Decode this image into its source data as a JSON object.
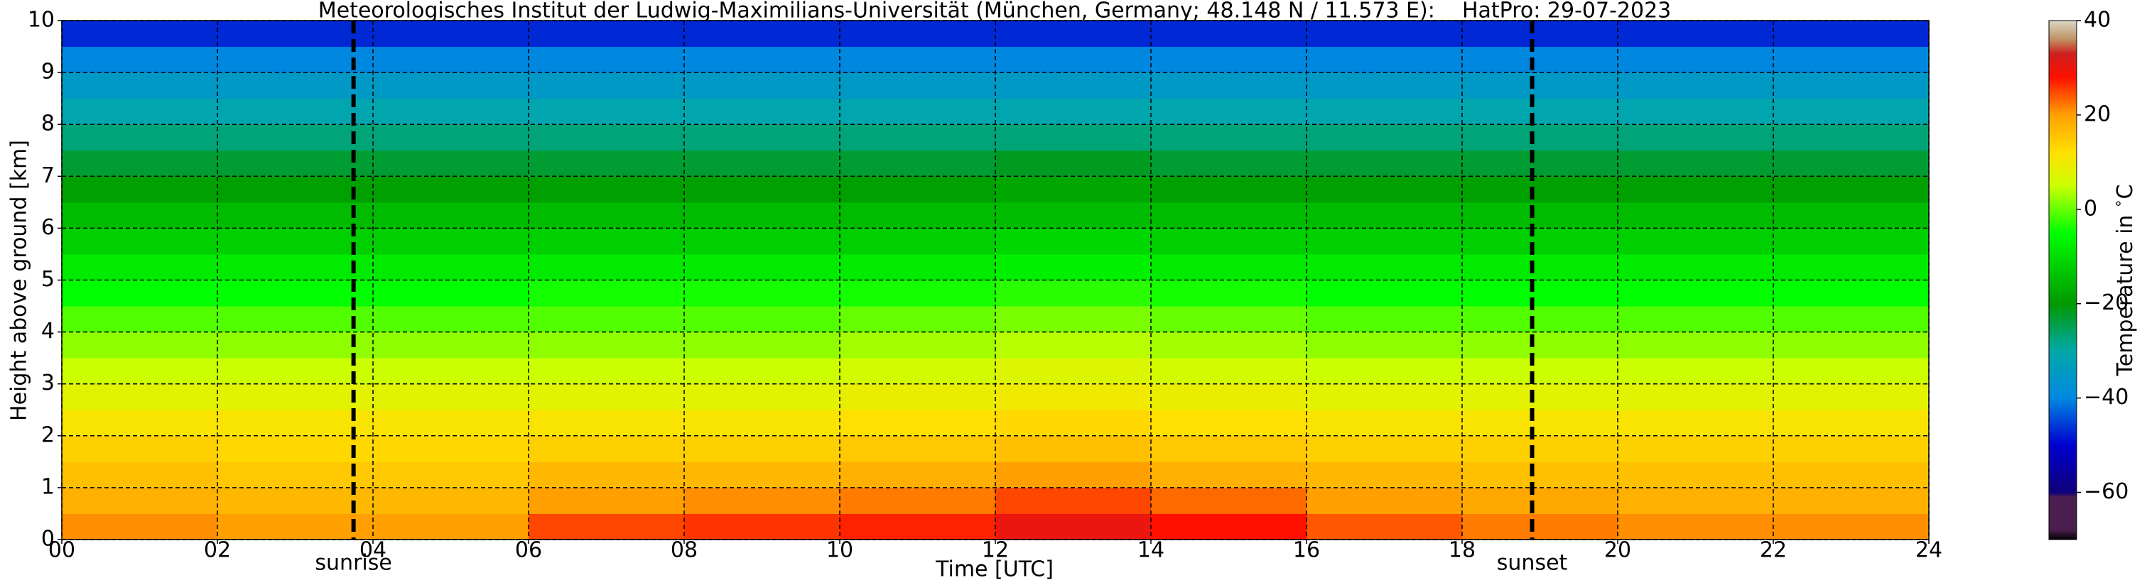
{
  "chart_data": {
    "type": "heatmap",
    "title": "Meteorologisches Institut der Ludwig-Maximilians-Universität (München, Germany; 48.148 N / 11.573 E):    HatPro: 29-07-2023",
    "x_label": "Time [UTC]",
    "y_label": "Height above ground [km]",
    "colorbar_label": "Temperature in $^\\circ$C",
    "x": [
      0,
      2,
      4,
      6,
      8,
      10,
      12,
      14,
      16,
      18,
      20,
      22,
      24
    ],
    "y": [
      0,
      0.5,
      1,
      1.5,
      2,
      2.5,
      3,
      3.5,
      4,
      4.5,
      5,
      5.5,
      6,
      6.5,
      7,
      7.5,
      8,
      8.5,
      9,
      9.5,
      10
    ],
    "values": [
      [
        21,
        20,
        20,
        25,
        26,
        27,
        30,
        28,
        24,
        22,
        21,
        21
      ],
      [
        18,
        17,
        17,
        20,
        21,
        22,
        25,
        23,
        20,
        19,
        18,
        18
      ],
      [
        16,
        15,
        15,
        17,
        17,
        18,
        20,
        18,
        17,
        16,
        16,
        16
      ],
      [
        14,
        13,
        13,
        14,
        14,
        15,
        16,
        15,
        14,
        14,
        14,
        14
      ],
      [
        11,
        11,
        11,
        11,
        11,
        12,
        13,
        12,
        11,
        11,
        11,
        11
      ],
      [
        8,
        8,
        8,
        8,
        8,
        9,
        10,
        9,
        8,
        8,
        8,
        8
      ],
      [
        5,
        5,
        5,
        5,
        5,
        6,
        7,
        6,
        5,
        5,
        5,
        5
      ],
      [
        2,
        2,
        2,
        2,
        2,
        3,
        4,
        3,
        2,
        2,
        2,
        2
      ],
      [
        -1,
        -1,
        -1,
        -1,
        -1,
        0,
        1,
        0,
        -1,
        -1,
        -1,
        -1
      ],
      [
        -5,
        -5,
        -5,
        -4,
        -4,
        -4,
        -3,
        -4,
        -5,
        -5,
        -5,
        -5
      ],
      [
        -8,
        -8,
        -8,
        -8,
        -8,
        -8,
        -7,
        -8,
        -8,
        -8,
        -8,
        -8
      ],
      [
        -12,
        -12,
        -12,
        -12,
        -12,
        -12,
        -11,
        -12,
        -12,
        -12,
        -12,
        -12
      ],
      [
        -15,
        -15,
        -15,
        -15,
        -15,
        -15,
        -15,
        -15,
        -15,
        -15,
        -15,
        -15
      ],
      [
        -19,
        -19,
        -19,
        -19,
        -19,
        -19,
        -18,
        -19,
        -19,
        -19,
        -19,
        -19
      ],
      [
        -23,
        -23,
        -23,
        -23,
        -23,
        -23,
        -22,
        -23,
        -23,
        -23,
        -23,
        -23
      ],
      [
        -27,
        -27,
        -27,
        -27,
        -27,
        -27,
        -27,
        -27,
        -27,
        -27,
        -27,
        -27
      ],
      [
        -31,
        -31,
        -31,
        -31,
        -31,
        -31,
        -31,
        -31,
        -31,
        -31,
        -31,
        -31
      ],
      [
        -35,
        -35,
        -35,
        -35,
        -35,
        -35,
        -35,
        -35,
        -35,
        -35,
        -35,
        -35
      ],
      [
        -40,
        -40,
        -40,
        -40,
        -40,
        -40,
        -40,
        -40,
        -40,
        -40,
        -40,
        -40
      ],
      [
        -47,
        -47,
        -47,
        -47,
        -47,
        -47,
        -47,
        -47,
        -47,
        -47,
        -47,
        -47
      ]
    ],
    "xlim": [
      0,
      24
    ],
    "ylim": [
      0,
      10
    ],
    "clim": [
      -70,
      40
    ],
    "xticks": [
      {
        "value": 0,
        "label": "00"
      },
      {
        "value": 2,
        "label": "02"
      },
      {
        "value": 4,
        "label": "04"
      },
      {
        "value": 6,
        "label": "06"
      },
      {
        "value": 8,
        "label": "08"
      },
      10,
      12,
      14,
      16,
      18,
      20,
      22,
      24
    ],
    "yticks": [
      0,
      1,
      2,
      3,
      4,
      5,
      6,
      7,
      8,
      9,
      10
    ],
    "cticks": [
      {
        "value": -60,
        "label": "−60"
      },
      {
        "value": -40,
        "label": "−40"
      },
      {
        "value": -20,
        "label": "−20"
      },
      0,
      20,
      40
    ],
    "grid": true,
    "annotations": [
      {
        "text": "sunrise",
        "x": 3.75
      },
      {
        "text": "sunset",
        "x": 18.9
      }
    ],
    "colorscale": [
      {
        "value": -70,
        "color": "#000000"
      },
      {
        "value": -68,
        "color": "#4a1f4f"
      },
      {
        "value": -61,
        "color": "#4a1f4f"
      },
      {
        "value": -60,
        "color": "#10007a"
      },
      {
        "value": -50,
        "color": "#0000d0"
      },
      {
        "value": -40,
        "color": "#0088e0"
      },
      {
        "value": -30,
        "color": "#00a8a8"
      },
      {
        "value": -20,
        "color": "#009900"
      },
      {
        "value": -5,
        "color": "#00ff00"
      },
      {
        "value": 5,
        "color": "#ccff00"
      },
      {
        "value": 12,
        "color": "#ffe000"
      },
      {
        "value": 20,
        "color": "#ffa000"
      },
      {
        "value": 28,
        "color": "#ff1000"
      },
      {
        "value": 33,
        "color": "#cc2020"
      },
      {
        "value": 36,
        "color": "#c09060"
      },
      {
        "value": 40,
        "color": "#d8d8c8"
      }
    ]
  }
}
